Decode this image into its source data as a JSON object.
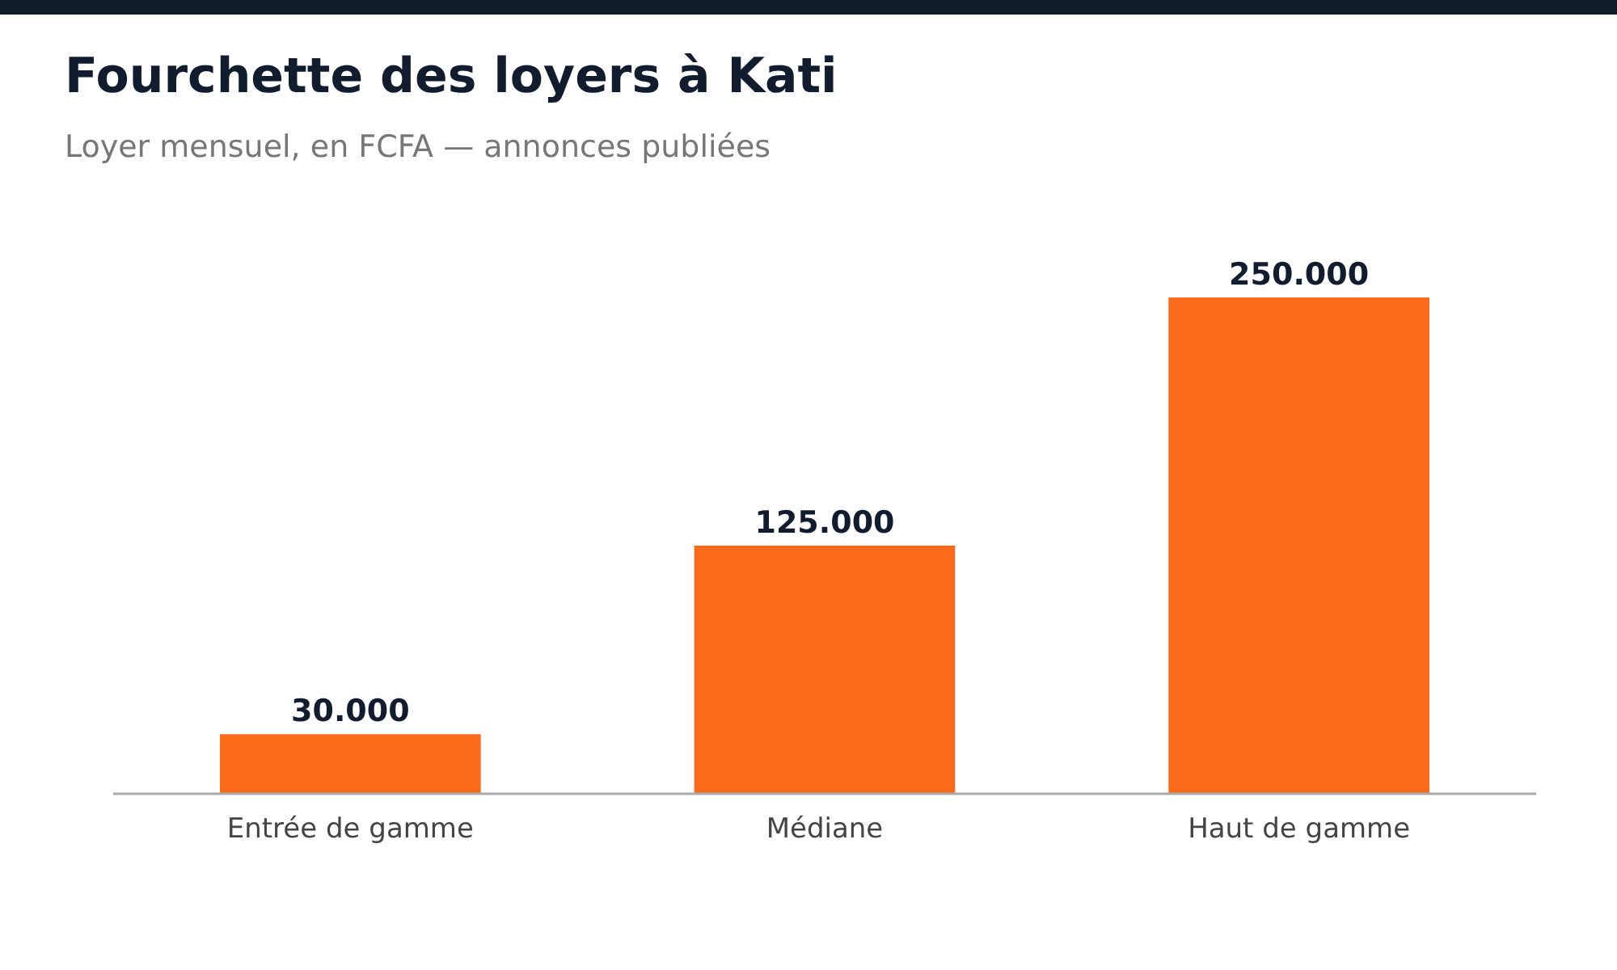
{
  "chart_data": {
    "type": "bar",
    "title": "Fourchette des loyers à Kati",
    "subtitle": "Loyer mensuel, en FCFA — annonces publiées",
    "categories": [
      "Entrée de gamme",
      "Médiane",
      "Haut de gamme"
    ],
    "values": [
      30000,
      125000,
      250000
    ],
    "value_labels": [
      "30.000",
      "125.000",
      "250.000"
    ],
    "color": "#fb6a1a"
  }
}
